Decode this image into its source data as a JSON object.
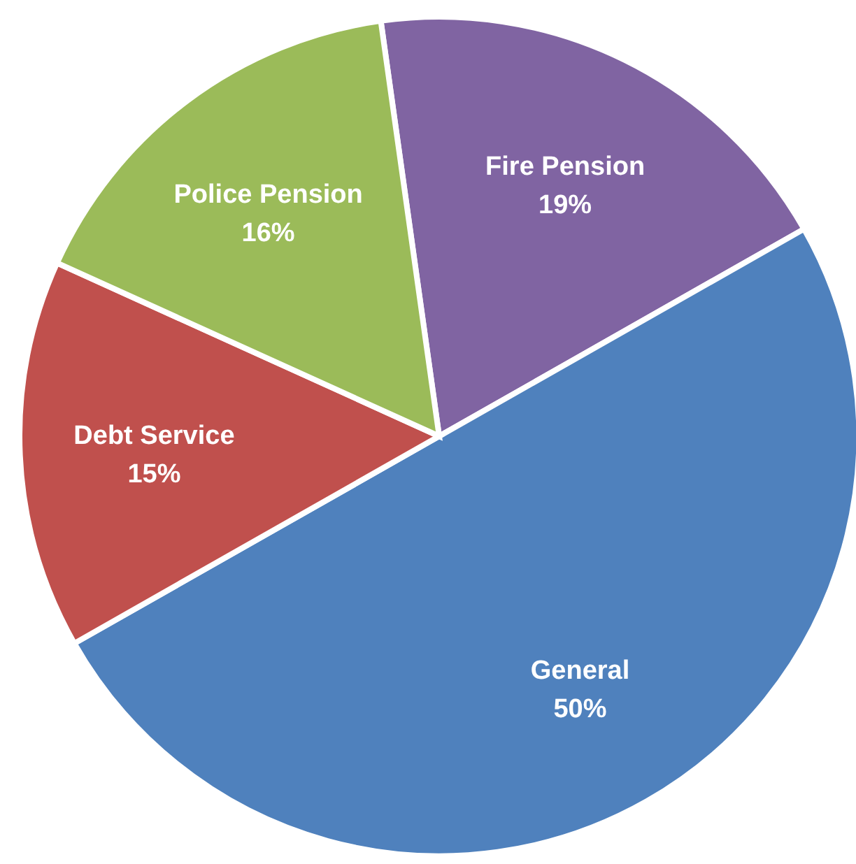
{
  "chart_data": {
    "type": "pie",
    "categories": [
      "Fire Pension",
      "General",
      "Debt Service",
      "Police Pension"
    ],
    "values": [
      19,
      50,
      15,
      16
    ],
    "colors": [
      "#8064a2",
      "#4f81bd",
      "#c0504d",
      "#9bbb59"
    ],
    "value_labels": [
      "19%",
      "50%",
      "15%",
      "16%"
    ]
  }
}
